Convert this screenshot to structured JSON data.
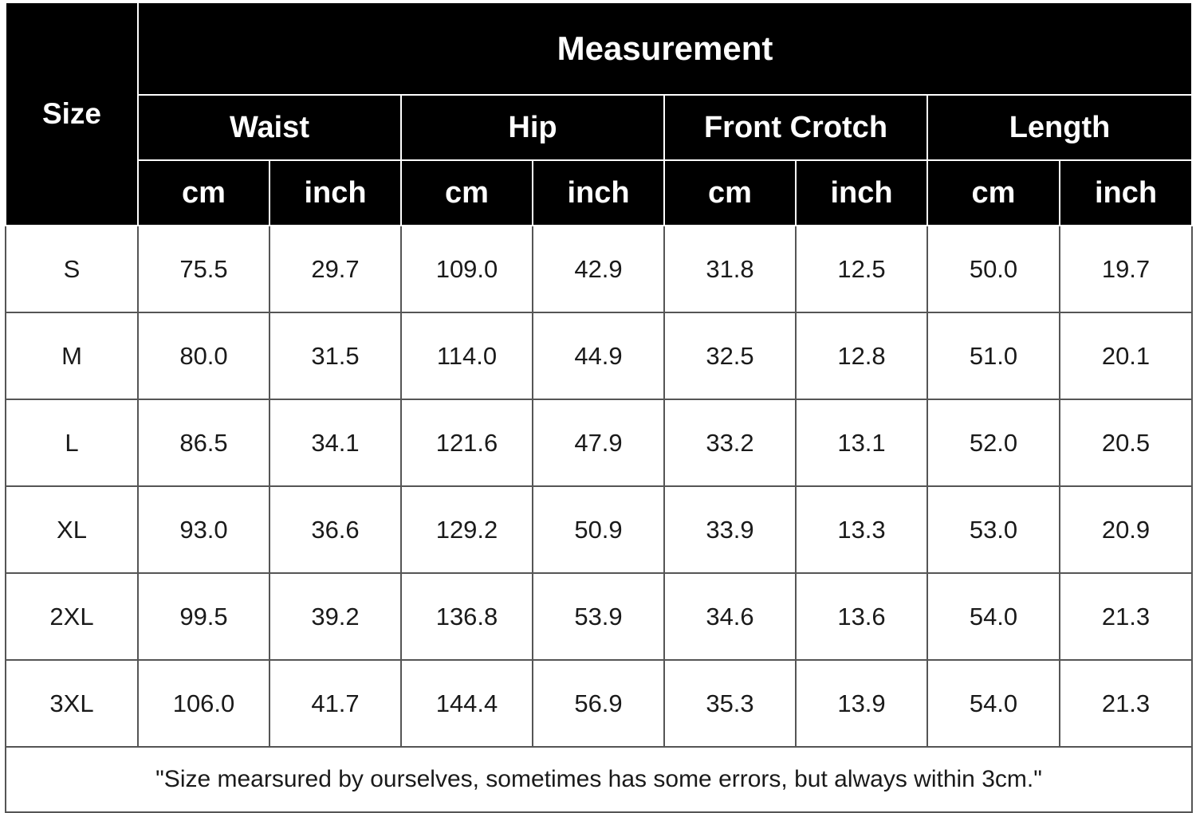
{
  "table": {
    "size_header": "Size",
    "measurement_header": "Measurement",
    "groups": [
      "Waist",
      "Hip",
      "Front Crotch",
      "Length"
    ],
    "units": [
      "cm",
      "inch",
      "cm",
      "inch",
      "cm",
      "inch",
      "cm",
      "inch"
    ],
    "rows": [
      {
        "size": "S",
        "values": [
          "75.5",
          "29.7",
          "109.0",
          "42.9",
          "31.8",
          "12.5",
          "50.0",
          "19.7"
        ]
      },
      {
        "size": "M",
        "values": [
          "80.0",
          "31.5",
          "114.0",
          "44.9",
          "32.5",
          "12.8",
          "51.0",
          "20.1"
        ]
      },
      {
        "size": "L",
        "values": [
          "86.5",
          "34.1",
          "121.6",
          "47.9",
          "33.2",
          "13.1",
          "52.0",
          "20.5"
        ]
      },
      {
        "size": "XL",
        "values": [
          "93.0",
          "36.6",
          "129.2",
          "50.9",
          "33.9",
          "13.3",
          "53.0",
          "20.9"
        ]
      },
      {
        "size": "2XL",
        "values": [
          "99.5",
          "39.2",
          "136.8",
          "53.9",
          "34.6",
          "13.6",
          "54.0",
          "21.3"
        ]
      },
      {
        "size": "3XL",
        "values": [
          "106.0",
          "41.7",
          "144.4",
          "56.9",
          "35.3",
          "13.9",
          "54.0",
          "21.3"
        ]
      }
    ],
    "note": "\"Size mearsured by ourselves, sometimes has some errors, but always within 3cm.\""
  },
  "colors": {
    "header_bg": "#000000",
    "header_text": "#ffffff",
    "body_text": "#1a1a1a",
    "grid": "#555555"
  }
}
